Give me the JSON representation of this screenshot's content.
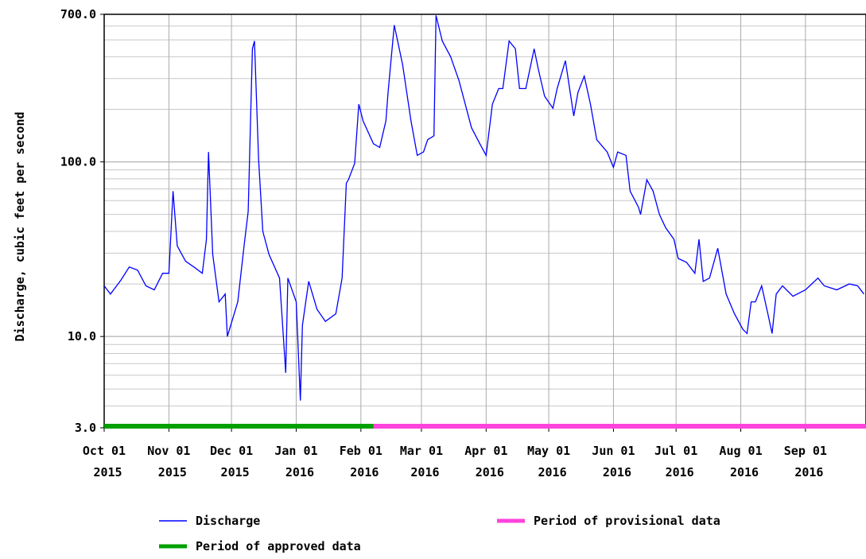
{
  "chart_data": {
    "type": "line",
    "y_label": "Discharge, cubic feet per second",
    "log_y": true,
    "grid": true,
    "ylim": [
      3,
      700
    ],
    "yticks": [
      {
        "value": 3,
        "label": "3.0"
      },
      {
        "value": 10,
        "label": "10.0"
      },
      {
        "value": 100,
        "label": "100.0"
      },
      {
        "value": 700,
        "label": "700.0"
      }
    ],
    "xlim": [
      "2015-10-01",
      "2016-09-30"
    ],
    "xticks": [
      {
        "value": "2015-10-01",
        "label": "Oct 01 2015"
      },
      {
        "value": "2015-11-01",
        "label": "Nov 01 2015"
      },
      {
        "value": "2015-12-01",
        "label": "Dec 01 2015"
      },
      {
        "value": "2016-01-01",
        "label": "Jan 01 2016"
      },
      {
        "value": "2016-02-01",
        "label": "Feb 01 2016"
      },
      {
        "value": "2016-03-01",
        "label": "Mar 01 2016"
      },
      {
        "value": "2016-04-01",
        "label": "Apr 01 2016"
      },
      {
        "value": "2016-05-01",
        "label": "May 01 2016"
      },
      {
        "value": "2016-06-01",
        "label": "Jun 01 2016"
      },
      {
        "value": "2016-07-01",
        "label": "Jul 01 2016"
      },
      {
        "value": "2016-08-01",
        "label": "Aug 01 2016"
      },
      {
        "value": "2016-09-01",
        "label": "Sep 01 2016"
      }
    ],
    "x": [
      "2015-10-01",
      "2015-10-04",
      "2015-10-09",
      "2015-10-13",
      "2015-10-17",
      "2015-10-21",
      "2015-10-25",
      "2015-10-29",
      "2015-11-01",
      "2015-11-03",
      "2015-11-05",
      "2015-11-09",
      "2015-11-13",
      "2015-11-17",
      "2015-11-19",
      "2015-11-20",
      "2015-11-22",
      "2015-11-25",
      "2015-11-28",
      "2015-11-29",
      "2015-12-04",
      "2015-12-07",
      "2015-12-09",
      "2015-12-11",
      "2015-12-12",
      "2015-12-14",
      "2015-12-16",
      "2015-12-19",
      "2015-12-24",
      "2015-12-27",
      "2015-12-28",
      "2016-01-01",
      "2016-01-03",
      "2016-01-04",
      "2016-01-07",
      "2016-01-11",
      "2016-01-15",
      "2016-01-20",
      "2016-01-23",
      "2016-01-25",
      "2016-01-26",
      "2016-01-29",
      "2016-01-31",
      "2016-02-02",
      "2016-02-07",
      "2016-02-10",
      "2016-02-13",
      "2016-02-14",
      "2016-02-17",
      "2016-02-21",
      "2016-02-25",
      "2016-02-28",
      "2016-03-02",
      "2016-03-04",
      "2016-03-07",
      "2016-03-08",
      "2016-03-11",
      "2016-03-15",
      "2016-03-19",
      "2016-03-25",
      "2016-03-29",
      "2016-04-01",
      "2016-04-04",
      "2016-04-07",
      "2016-04-09",
      "2016-04-12",
      "2016-04-15",
      "2016-04-17",
      "2016-04-20",
      "2016-04-24",
      "2016-04-26",
      "2016-04-29",
      "2016-05-03",
      "2016-05-05",
      "2016-05-09",
      "2016-05-11",
      "2016-05-13",
      "2016-05-15",
      "2016-05-18",
      "2016-05-21",
      "2016-05-24",
      "2016-05-29",
      "2016-06-01",
      "2016-06-03",
      "2016-06-07",
      "2016-06-09",
      "2016-06-13",
      "2016-06-14",
      "2016-06-17",
      "2016-06-20",
      "2016-06-23",
      "2016-06-26",
      "2016-06-30",
      "2016-07-02",
      "2016-07-06",
      "2016-07-10",
      "2016-07-12",
      "2016-07-14",
      "2016-07-17",
      "2016-07-21",
      "2016-07-25",
      "2016-07-29",
      "2016-08-02",
      "2016-08-04",
      "2016-08-06",
      "2016-08-08",
      "2016-08-11",
      "2016-08-14",
      "2016-08-16",
      "2016-08-18",
      "2016-08-21",
      "2016-08-26",
      "2016-09-01",
      "2016-09-07",
      "2016-09-10",
      "2016-09-16",
      "2016-09-22",
      "2016-09-26",
      "2016-09-29"
    ],
    "series": [
      {
        "name": "Discharge",
        "color": "#0000ff",
        "values": [
          19.5,
          17.5,
          21,
          25,
          24,
          19.5,
          18.5,
          23,
          23,
          68,
          33,
          27,
          25,
          23,
          36,
          114,
          29.5,
          15.8,
          17.5,
          10,
          15.8,
          33,
          52,
          444,
          492,
          103,
          40,
          29.5,
          21.6,
          6.2,
          21.6,
          15.8,
          4.3,
          11.6,
          20.7,
          14.3,
          12.2,
          13.5,
          21.6,
          75.5,
          79,
          98,
          214,
          172,
          127,
          121,
          172,
          250,
          607,
          360,
          172,
          109,
          114,
          134,
          141,
          690,
          492,
          400,
          292,
          157,
          127,
          109,
          214,
          263,
          263,
          492,
          444,
          263,
          263,
          444,
          340,
          238,
          203,
          263,
          380,
          263,
          183,
          250,
          310,
          214,
          134,
          114,
          93,
          114,
          109,
          68,
          55,
          50,
          79,
          68,
          50,
          42,
          36,
          28,
          26.6,
          23,
          36,
          20.7,
          21.6,
          32,
          17.5,
          13.5,
          11,
          10.4,
          15.8,
          15.8,
          19.5,
          13.5,
          10.4,
          17.5,
          19.5,
          17,
          18.5,
          21.6,
          19.5,
          18.5,
          20,
          19.5,
          17.5
        ]
      }
    ],
    "periods": [
      {
        "name": "Period of approved data",
        "color": "#00a000",
        "start": "2015-10-01",
        "end": "2016-02-07"
      },
      {
        "name": "Period of provisional data",
        "color": "#ff44dd",
        "start": "2016-02-07",
        "end": "2016-09-30"
      }
    ]
  }
}
